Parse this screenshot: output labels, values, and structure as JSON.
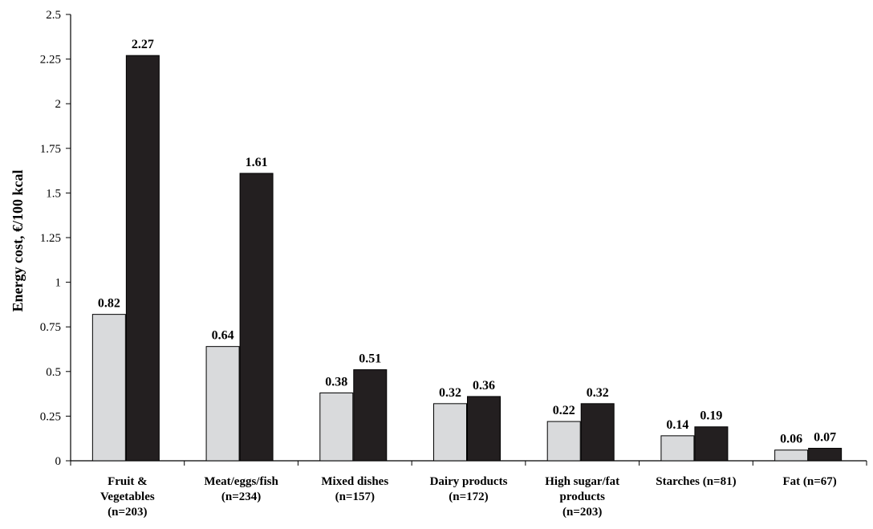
{
  "chart_data": {
    "type": "bar",
    "title": "",
    "xlabel": "",
    "ylabel": "Energy cost,  €/100 kcal",
    "ylim": [
      0,
      2.5
    ],
    "yticks": [
      0,
      0.25,
      0.5,
      0.75,
      1,
      1.25,
      1.5,
      1.75,
      2,
      2.25,
      2.5
    ],
    "ytick_labels": [
      "0",
      "0.25",
      "0.5",
      "0.75",
      "1",
      "1.25",
      "1.5",
      "1.75",
      "2",
      "2.25",
      "2.5"
    ],
    "grid": false,
    "legend": false,
    "categories": [
      [
        "Fruit &",
        "Vegetables",
        "(n=203)"
      ],
      [
        "Meat/eggs/fish",
        "(n=234)"
      ],
      [
        "Mixed dishes",
        "(n=157)"
      ],
      [
        "Dairy products",
        "(n=172)"
      ],
      [
        "High sugar/fat",
        "products",
        "(n=203)"
      ],
      [
        "Starches (n=81)"
      ],
      [
        "Fat (n=67)"
      ]
    ],
    "series": [
      {
        "color": "#d9dadc",
        "values": [
          0.82,
          0.64,
          0.38,
          0.32,
          0.22,
          0.14,
          0.06
        ],
        "value_labels": [
          "0.82",
          "0.64",
          "0.38",
          "0.32",
          "0.22",
          "0.14",
          "0.06"
        ]
      },
      {
        "color": "#231f20",
        "values": [
          2.27,
          1.61,
          0.51,
          0.36,
          0.32,
          0.19,
          0.07
        ],
        "value_labels": [
          "2.27",
          "1.61",
          "0.51",
          "0.36",
          "0.32",
          "0.19",
          "0.07"
        ]
      }
    ]
  }
}
